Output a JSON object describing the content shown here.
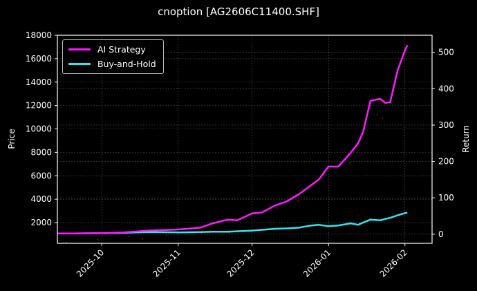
{
  "title": "cnoption [AG2606C11400.SHF]",
  "colors": {
    "background": "#000000",
    "ai_strategy": "#ff1aff",
    "buy_and_hold": "#33e6f2",
    "grid": "#555555",
    "price_markers": "#8b1010"
  },
  "chart_data": {
    "type": "line",
    "title": "cnoption [AG2606C11400.SHF]",
    "xlabel": "",
    "ylabel": "Price",
    "ylabel_right": "Return",
    "x_ticks": [
      "2025-10",
      "2025-11",
      "2025-12",
      "2026-01",
      "2026-02"
    ],
    "y_ticks_left": [
      2000,
      4000,
      6000,
      8000,
      10000,
      12000,
      14000,
      16000,
      18000
    ],
    "y_ticks_right": [
      0,
      100,
      200,
      300,
      400,
      500
    ],
    "ylim_left": [
      230,
      18000
    ],
    "ylim_right": [
      -25,
      547
    ],
    "xlim": [
      "2025-09-13",
      "2026-02-12"
    ],
    "grid": true,
    "legend_position": "upper left",
    "x": [
      "2025-09-13",
      "2025-09-20",
      "2025-10-01",
      "2025-10-10",
      "2025-10-20",
      "2025-11-01",
      "2025-11-10",
      "2025-11-15",
      "2025-11-21",
      "2025-11-25",
      "2025-12-01",
      "2025-12-05",
      "2025-12-10",
      "2025-12-15",
      "2025-12-20",
      "2025-12-25",
      "2025-12-28",
      "2026-01-01",
      "2026-01-05",
      "2026-01-10",
      "2026-01-13",
      "2026-01-15",
      "2026-01-18",
      "2026-01-22",
      "2026-01-24",
      "2026-01-26",
      "2026-01-29",
      "2026-02-01",
      "2026-02-02"
    ],
    "series": [
      {
        "name": "AI Strategy",
        "axis": "right",
        "values": [
          2,
          2,
          3,
          5,
          10,
          13,
          18,
          30,
          40,
          38,
          57,
          60,
          78,
          90,
          110,
          135,
          150,
          186,
          186,
          224,
          250,
          281,
          367,
          372,
          361,
          363,
          450,
          505,
          520
        ]
      },
      {
        "name": "Buy-and-Hold",
        "axis": "right",
        "values": [
          2,
          2,
          3,
          4,
          6,
          5,
          6,
          7,
          7,
          8,
          10,
          12,
          15,
          16,
          18,
          24,
          26,
          22,
          24,
          30,
          26,
          32,
          40,
          38,
          42,
          45,
          52,
          58,
          59
        ]
      }
    ]
  },
  "legend": {
    "items": [
      {
        "label": "AI Strategy"
      },
      {
        "label": "Buy-and-Hold"
      }
    ]
  }
}
